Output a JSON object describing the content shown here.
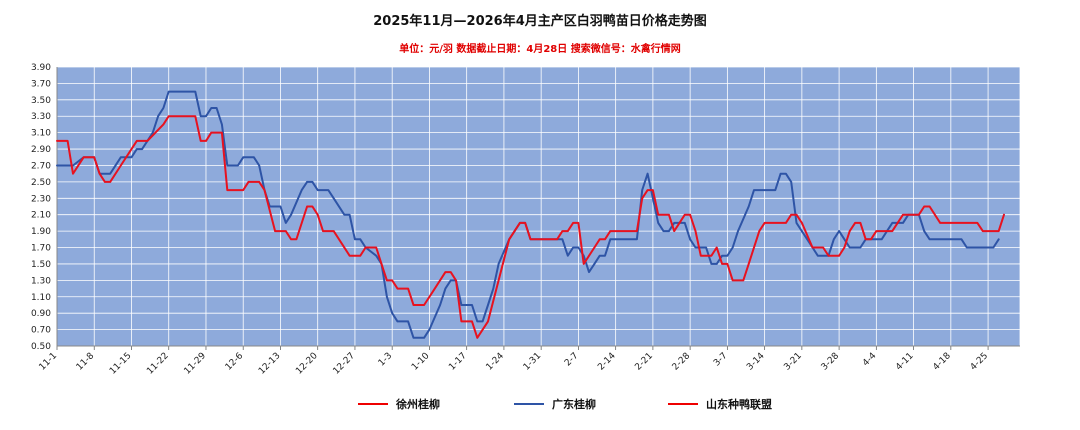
{
  "chart_data": {
    "type": "line",
    "title": "2025年11月—2026年4月主产区白羽鸭苗日价格走势图",
    "subtitle": "单位：元/羽    数据截止日期：4月28日    搜索微信号：水禽行情网",
    "ylim": [
      0.5,
      3.9
    ],
    "yticks": [
      "0.50",
      "0.70",
      "0.90",
      "1.10",
      "1.30",
      "1.50",
      "1.70",
      "1.90",
      "2.10",
      "2.30",
      "2.50",
      "2.70",
      "2.90",
      "3.10",
      "3.30",
      "3.50",
      "3.70",
      "3.90"
    ],
    "xticks": [
      "11-1",
      "11-8",
      "11-15",
      "11-22",
      "11-29",
      "12-6",
      "12-13",
      "12-20",
      "12-27",
      "1-3",
      "1-10",
      "1-17",
      "1-24",
      "1-31",
      "2-7",
      "2-14",
      "2-21",
      "2-28",
      "3-7",
      "3-14",
      "3-21",
      "3-28",
      "4-4",
      "4-11",
      "4-18",
      "4-25"
    ],
    "x_start": "2025-11-01",
    "grid": true,
    "legend_position": "bottom",
    "plot_background": "#8eaadb",
    "series": [
      {
        "name": "徐州桂柳",
        "color": "#e8121f",
        "values": [
          [
            "11-01",
            3.0
          ],
          [
            "11-03",
            3.0
          ],
          [
            "11-04",
            2.6
          ],
          [
            "11-06",
            2.8
          ],
          [
            "11-08",
            2.8
          ],
          [
            "11-09",
            2.6
          ],
          [
            "11-10",
            2.5
          ],
          [
            "11-11",
            2.5
          ],
          [
            "11-13",
            2.7
          ],
          [
            "11-15",
            2.9
          ],
          [
            "11-16",
            3.0
          ],
          [
            "11-18",
            3.0
          ],
          [
            "11-21",
            3.2
          ],
          [
            "11-22",
            3.3
          ],
          [
            "11-27",
            3.3
          ],
          [
            "11-28",
            3.0
          ],
          [
            "11-29",
            3.0
          ],
          [
            "11-30",
            3.1
          ],
          [
            "12-02",
            3.1
          ],
          [
            "12-03",
            2.4
          ],
          [
            "12-06",
            2.4
          ],
          [
            "12-07",
            2.5
          ],
          [
            "12-09",
            2.5
          ],
          [
            "12-10",
            2.4
          ],
          [
            "12-12",
            1.9
          ],
          [
            "12-14",
            1.9
          ],
          [
            "12-15",
            1.8
          ],
          [
            "12-16",
            1.8
          ],
          [
            "12-18",
            2.2
          ],
          [
            "12-19",
            2.2
          ],
          [
            "12-20",
            2.1
          ],
          [
            "12-21",
            1.9
          ],
          [
            "12-23",
            1.9
          ],
          [
            "12-26",
            1.6
          ],
          [
            "12-28",
            1.6
          ],
          [
            "12-29",
            1.7
          ],
          [
            "12-31",
            1.7
          ],
          [
            "01-01",
            1.5
          ],
          [
            "01-02",
            1.3
          ],
          [
            "01-03",
            1.3
          ],
          [
            "01-04",
            1.2
          ],
          [
            "01-06",
            1.2
          ],
          [
            "01-07",
            1.0
          ],
          [
            "01-09",
            1.0
          ],
          [
            "01-11",
            1.2
          ],
          [
            "01-13",
            1.4
          ],
          [
            "01-14",
            1.4
          ],
          [
            "01-15",
            1.3
          ],
          [
            "01-16",
            0.8
          ],
          [
            "01-18",
            0.8
          ],
          [
            "01-19",
            0.6
          ],
          [
            "01-21",
            0.8
          ],
          [
            "01-23",
            1.3
          ],
          [
            "01-25",
            1.8
          ],
          [
            "01-26",
            1.9
          ],
          [
            "01-27",
            2.0
          ],
          [
            "01-28",
            2.0
          ],
          [
            "01-29",
            1.8
          ],
          [
            "02-03",
            1.8
          ],
          [
            "02-04",
            1.9
          ],
          [
            "02-05",
            1.9
          ],
          [
            "02-06",
            2.0
          ],
          [
            "02-07",
            2.0
          ],
          [
            "02-08",
            1.5
          ],
          [
            "02-10",
            1.7
          ],
          [
            "02-11",
            1.8
          ],
          [
            "02-12",
            1.8
          ],
          [
            "02-13",
            1.9
          ],
          [
            "02-18",
            1.9
          ],
          [
            "02-19",
            2.3
          ],
          [
            "02-20",
            2.4
          ],
          [
            "02-21",
            2.4
          ],
          [
            "02-22",
            2.1
          ],
          [
            "02-24",
            2.1
          ],
          [
            "02-25",
            1.9
          ],
          [
            "02-26",
            2.0
          ],
          [
            "02-27",
            2.1
          ],
          [
            "02-28",
            2.1
          ],
          [
            "03-01",
            1.9
          ],
          [
            "03-02",
            1.6
          ],
          [
            "03-04",
            1.6
          ],
          [
            "03-05",
            1.7
          ],
          [
            "03-06",
            1.5
          ],
          [
            "03-07",
            1.5
          ],
          [
            "03-08",
            1.3
          ],
          [
            "03-10",
            1.3
          ],
          [
            "03-11",
            1.5
          ],
          [
            "03-13",
            1.9
          ],
          [
            "03-14",
            2.0
          ],
          [
            "03-18",
            2.0
          ],
          [
            "03-19",
            2.1
          ],
          [
            "03-20",
            2.1
          ],
          [
            "03-21",
            2.0
          ],
          [
            "03-23",
            1.7
          ],
          [
            "03-25",
            1.7
          ],
          [
            "03-26",
            1.6
          ],
          [
            "03-28",
            1.6
          ],
          [
            "03-29",
            1.7
          ],
          [
            "03-30",
            1.9
          ],
          [
            "03-31",
            2.0
          ],
          [
            "04-01",
            2.0
          ],
          [
            "04-02",
            1.8
          ],
          [
            "04-03",
            1.8
          ],
          [
            "04-04",
            1.9
          ],
          [
            "04-07",
            1.9
          ],
          [
            "04-09",
            2.1
          ],
          [
            "04-12",
            2.1
          ],
          [
            "04-13",
            2.2
          ],
          [
            "04-14",
            2.2
          ],
          [
            "04-16",
            2.0
          ],
          [
            "04-23",
            2.0
          ],
          [
            "04-24",
            1.9
          ],
          [
            "04-27",
            1.9
          ],
          [
            "04-28",
            2.1
          ]
        ]
      },
      {
        "name": "广东桂柳",
        "color": "#2e54a6",
        "values": [
          [
            "11-01",
            2.7
          ],
          [
            "11-04",
            2.7
          ],
          [
            "11-06",
            2.8
          ],
          [
            "11-08",
            2.8
          ],
          [
            "11-09",
            2.6
          ],
          [
            "11-11",
            2.6
          ],
          [
            "11-13",
            2.8
          ],
          [
            "11-15",
            2.8
          ],
          [
            "11-16",
            2.9
          ],
          [
            "11-17",
            2.9
          ],
          [
            "11-18",
            3.0
          ],
          [
            "11-19",
            3.1
          ],
          [
            "11-20",
            3.3
          ],
          [
            "11-21",
            3.4
          ],
          [
            "11-22",
            3.6
          ],
          [
            "11-27",
            3.6
          ],
          [
            "11-28",
            3.3
          ],
          [
            "11-29",
            3.3
          ],
          [
            "11-30",
            3.4
          ],
          [
            "12-01",
            3.4
          ],
          [
            "12-02",
            3.2
          ],
          [
            "12-03",
            2.7
          ],
          [
            "12-05",
            2.7
          ],
          [
            "12-06",
            2.8
          ],
          [
            "12-08",
            2.8
          ],
          [
            "12-09",
            2.7
          ],
          [
            "12-10",
            2.4
          ],
          [
            "12-11",
            2.2
          ],
          [
            "12-13",
            2.2
          ],
          [
            "12-14",
            2.0
          ],
          [
            "12-15",
            2.1
          ],
          [
            "12-17",
            2.4
          ],
          [
            "12-18",
            2.5
          ],
          [
            "12-19",
            2.5
          ],
          [
            "12-20",
            2.4
          ],
          [
            "12-21",
            2.4
          ],
          [
            "12-22",
            2.4
          ],
          [
            "12-23",
            2.3
          ],
          [
            "12-25",
            2.1
          ],
          [
            "12-26",
            2.1
          ],
          [
            "12-27",
            1.8
          ],
          [
            "12-28",
            1.8
          ],
          [
            "12-29",
            1.7
          ],
          [
            "12-31",
            1.6
          ],
          [
            "01-01",
            1.5
          ],
          [
            "01-02",
            1.1
          ],
          [
            "01-03",
            0.9
          ],
          [
            "01-04",
            0.8
          ],
          [
            "01-06",
            0.8
          ],
          [
            "01-07",
            0.6
          ],
          [
            "01-09",
            0.6
          ],
          [
            "01-10",
            0.7
          ],
          [
            "01-12",
            1.0
          ],
          [
            "01-13",
            1.2
          ],
          [
            "01-14",
            1.3
          ],
          [
            "01-15",
            1.3
          ],
          [
            "01-16",
            1.0
          ],
          [
            "01-18",
            1.0
          ],
          [
            "01-19",
            0.8
          ],
          [
            "01-20",
            0.8
          ],
          [
            "01-21",
            1.0
          ],
          [
            "01-22",
            1.2
          ],
          [
            "01-23",
            1.5
          ],
          [
            "01-25",
            1.8
          ],
          [
            "01-26",
            1.9
          ],
          [
            "01-27",
            2.0
          ],
          [
            "01-28",
            2.0
          ],
          [
            "01-29",
            1.8
          ],
          [
            "02-04",
            1.8
          ],
          [
            "02-05",
            1.6
          ],
          [
            "02-06",
            1.7
          ],
          [
            "02-07",
            1.7
          ],
          [
            "02-08",
            1.6
          ],
          [
            "02-09",
            1.4
          ],
          [
            "02-10",
            1.5
          ],
          [
            "02-11",
            1.6
          ],
          [
            "02-12",
            1.6
          ],
          [
            "02-13",
            1.8
          ],
          [
            "02-18",
            1.8
          ],
          [
            "02-19",
            2.4
          ],
          [
            "02-20",
            2.6
          ],
          [
            "02-21",
            2.3
          ],
          [
            "02-22",
            2.0
          ],
          [
            "02-23",
            1.9
          ],
          [
            "02-24",
            1.9
          ],
          [
            "02-25",
            2.0
          ],
          [
            "02-27",
            2.0
          ],
          [
            "02-28",
            1.8
          ],
          [
            "03-01",
            1.7
          ],
          [
            "03-03",
            1.7
          ],
          [
            "03-04",
            1.5
          ],
          [
            "03-05",
            1.5
          ],
          [
            "03-06",
            1.6
          ],
          [
            "03-07",
            1.6
          ],
          [
            "03-08",
            1.7
          ],
          [
            "03-09",
            1.9
          ],
          [
            "03-11",
            2.2
          ],
          [
            "03-12",
            2.4
          ],
          [
            "03-16",
            2.4
          ],
          [
            "03-17",
            2.6
          ],
          [
            "03-18",
            2.6
          ],
          [
            "03-19",
            2.5
          ],
          [
            "03-20",
            2.0
          ],
          [
            "03-22",
            1.8
          ],
          [
            "03-23",
            1.7
          ],
          [
            "03-24",
            1.6
          ],
          [
            "03-26",
            1.6
          ],
          [
            "03-27",
            1.8
          ],
          [
            "03-28",
            1.9
          ],
          [
            "03-29",
            1.8
          ],
          [
            "03-30",
            1.7
          ],
          [
            "04-01",
            1.7
          ],
          [
            "04-02",
            1.8
          ],
          [
            "04-05",
            1.8
          ],
          [
            "04-06",
            1.9
          ],
          [
            "04-07",
            2.0
          ],
          [
            "04-09",
            2.0
          ],
          [
            "04-10",
            2.1
          ],
          [
            "04-12",
            2.1
          ],
          [
            "04-13",
            1.9
          ],
          [
            "04-14",
            1.8
          ],
          [
            "04-20",
            1.8
          ],
          [
            "04-21",
            1.7
          ],
          [
            "04-26",
            1.7
          ],
          [
            "04-27",
            1.8
          ]
        ]
      },
      {
        "name": "山东种鸭联盟",
        "color": "#e8121f",
        "values": []
      }
    ]
  }
}
